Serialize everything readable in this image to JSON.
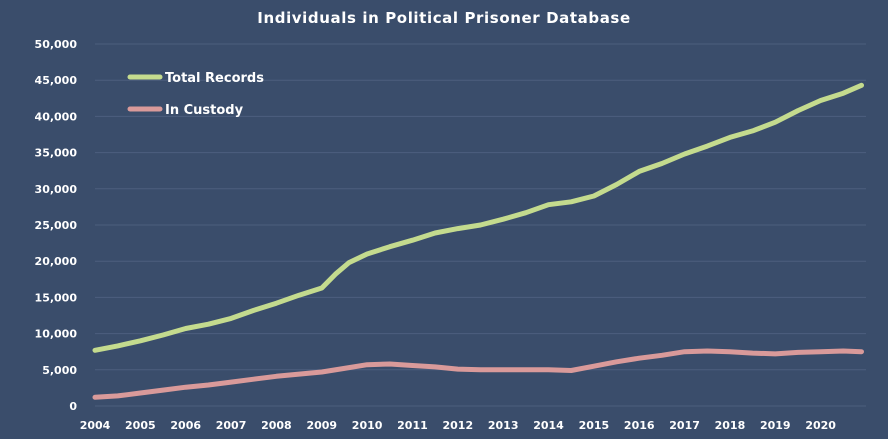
{
  "chart_data": {
    "type": "line",
    "title": "Individuals in Political Prisoner Database",
    "xlabel": "",
    "ylabel": "",
    "xlim": [
      2004,
      2021
    ],
    "ylim": [
      0,
      50000
    ],
    "y_ticks": [
      0,
      5000,
      10000,
      15000,
      20000,
      25000,
      30000,
      35000,
      40000,
      45000,
      50000
    ],
    "y_tick_labels": [
      "0",
      "5,000",
      "10,000",
      "15,000",
      "20,000",
      "25,000",
      "30,000",
      "35,000",
      "40,000",
      "45,000",
      "50,000"
    ],
    "x_ticks": [
      2004,
      2005,
      2006,
      2007,
      2008,
      2009,
      2010,
      2011,
      2012,
      2013,
      2014,
      2015,
      2016,
      2017,
      2018,
      2019,
      2020
    ],
    "x_tick_labels": [
      "2004",
      "2005",
      "2006",
      "2007",
      "2008",
      "2009",
      "2010",
      "2011",
      "2012",
      "2013",
      "2014",
      "2015",
      "2016",
      "2017",
      "2018",
      "2019",
      "2020"
    ],
    "grid": true,
    "legend_position": "top-left",
    "colors": {
      "background": "#3a4d6b",
      "total": "#c4db8e",
      "custody": "#d99a9a",
      "text": "#ffffff",
      "grid": "#4c5f7e"
    },
    "series": [
      {
        "name": "Total Records",
        "color": "#c4db8e",
        "x": [
          2004,
          2004.5,
          2005,
          2005.5,
          2006,
          2006.5,
          2007,
          2007.5,
          2008,
          2008.5,
          2009,
          2009.3,
          2009.6,
          2010,
          2010.5,
          2011,
          2011.5,
          2012,
          2012.5,
          2013,
          2013.5,
          2014,
          2014.5,
          2015,
          2015.5,
          2016,
          2016.5,
          2017,
          2017.5,
          2018,
          2018.5,
          2019,
          2019.5,
          2020,
          2020.5,
          2020.9
        ],
        "values": [
          7700,
          8300,
          9000,
          9800,
          10700,
          11300,
          12100,
          13200,
          14200,
          15300,
          16300,
          18200,
          19800,
          21000,
          22000,
          22900,
          23900,
          24500,
          25000,
          25800,
          26700,
          27800,
          28200,
          29000,
          30600,
          32400,
          33500,
          34800,
          35900,
          37100,
          38000,
          39200,
          40800,
          42200,
          43200,
          44300
        ]
      },
      {
        "name": "In Custody",
        "color": "#d99a9a",
        "x": [
          2004,
          2004.5,
          2005,
          2005.5,
          2006,
          2006.5,
          2007,
          2007.5,
          2008,
          2008.5,
          2009,
          2009.5,
          2010,
          2010.5,
          2011,
          2011.5,
          2012,
          2012.5,
          2013,
          2013.5,
          2014,
          2014.5,
          2015,
          2015.5,
          2016,
          2016.5,
          2017,
          2017.5,
          2018,
          2018.5,
          2019,
          2019.5,
          2020,
          2020.5,
          2020.9
        ],
        "values": [
          1200,
          1400,
          1800,
          2200,
          2600,
          2900,
          3300,
          3700,
          4100,
          4400,
          4700,
          5200,
          5700,
          5800,
          5600,
          5400,
          5100,
          5000,
          5000,
          5000,
          5000,
          4900,
          5500,
          6100,
          6600,
          7000,
          7500,
          7600,
          7500,
          7300,
          7200,
          7400,
          7500,
          7600,
          7500
        ]
      }
    ]
  }
}
